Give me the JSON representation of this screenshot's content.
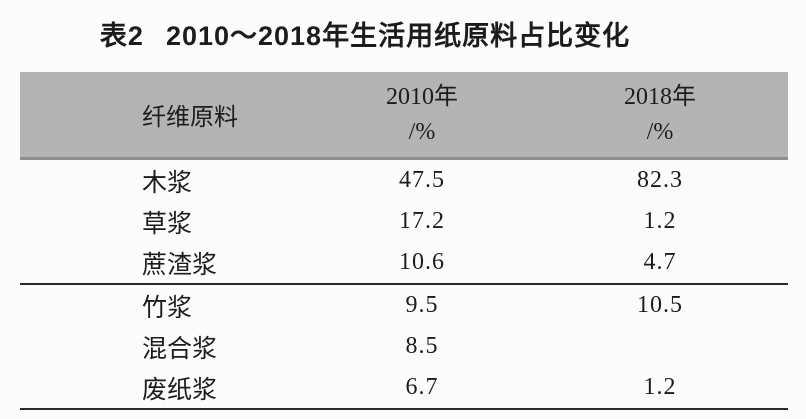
{
  "caption": {
    "label": "表2",
    "text": "2010～2018年生活用纸原料占比变化"
  },
  "table": {
    "header": {
      "material": "纤维原料",
      "y2010_line1": "2010年",
      "y2010_line2": "/%",
      "y2018_line1": "2018年",
      "y2018_line2": "/%"
    },
    "rows": [
      {
        "material": "木浆",
        "y2010": "47.5",
        "y2018": "82.3"
      },
      {
        "material": "草浆",
        "y2010": "17.2",
        "y2018": "1.2"
      },
      {
        "material": "蔗渣浆",
        "y2010": "10.6",
        "y2018": "4.7"
      },
      {
        "material": "竹浆",
        "y2010": "9.5",
        "y2018": "10.5"
      },
      {
        "material": "混合浆",
        "y2010": "8.5",
        "y2018": ""
      },
      {
        "material": "废纸浆",
        "y2010": "6.7",
        "y2018": "1.2"
      }
    ]
  },
  "colors": {
    "header_background": "#b4b4b3",
    "rule": "#2b2b2b",
    "text": "#1c1c1c",
    "page_background": "#fcfcfa"
  },
  "chart_data": {
    "type": "table",
    "title": "表2 2010～2018年生活用纸原料占比变化",
    "columns": [
      "纤维原料",
      "2010年/%",
      "2018年/%"
    ],
    "rows": [
      [
        "木浆",
        47.5,
        82.3
      ],
      [
        "草浆",
        17.2,
        1.2
      ],
      [
        "蔗渣浆",
        10.6,
        4.7
      ],
      [
        "竹浆",
        9.5,
        10.5
      ],
      [
        "混合浆",
        8.5,
        null
      ],
      [
        "废纸浆",
        6.7,
        1.2
      ]
    ]
  }
}
